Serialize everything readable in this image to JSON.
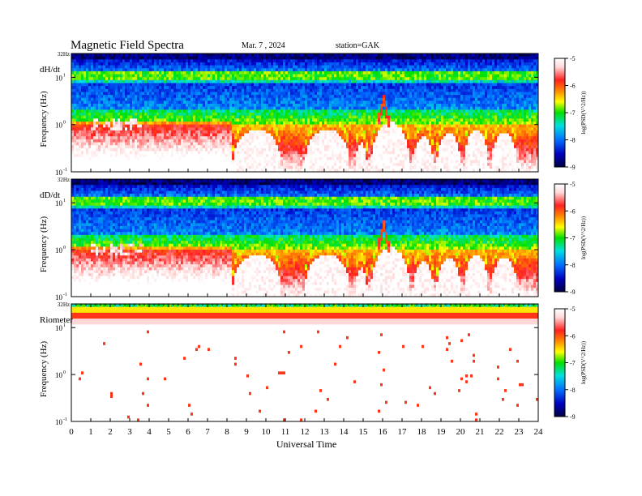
{
  "header": {
    "title": "Magnetic  Field  Spectra",
    "date": "Mar. 7  , 2024",
    "station": "station=GAK"
  },
  "chart_data": {
    "type": "heatmap",
    "x_axis": {
      "label": "Universal Time",
      "range": [
        0,
        24
      ],
      "ticks": [
        "0",
        "1",
        "2",
        "3",
        "4",
        "5",
        "6",
        "7",
        "8",
        "9",
        "10",
        "11",
        "12",
        "13",
        "14",
        "15",
        "16",
        "17",
        "18",
        "19",
        "20",
        "21",
        "22",
        "23",
        "24"
      ]
    },
    "y_axis": {
      "scale": "log",
      "label": "Frequency  (Hz)",
      "range": [
        0.1,
        32
      ],
      "tick_labels": {
        "top": "32Hz",
        "ten": "10",
        "one": "10",
        "tenth": "10"
      },
      "tick_exponents": {
        "ten": "1",
        "one": "0",
        "tenth": "-1"
      }
    },
    "colorbar": {
      "label": "log(PSD(V^2/Hz))",
      "range": [
        -9,
        -5
      ],
      "ticks": [
        "-5",
        "-6",
        "-7",
        "-8",
        "-9"
      ]
    },
    "panels": [
      {
        "name": "dH/dt"
      },
      {
        "name": "dD/dt"
      },
      {
        "name": "Riometer"
      }
    ]
  }
}
